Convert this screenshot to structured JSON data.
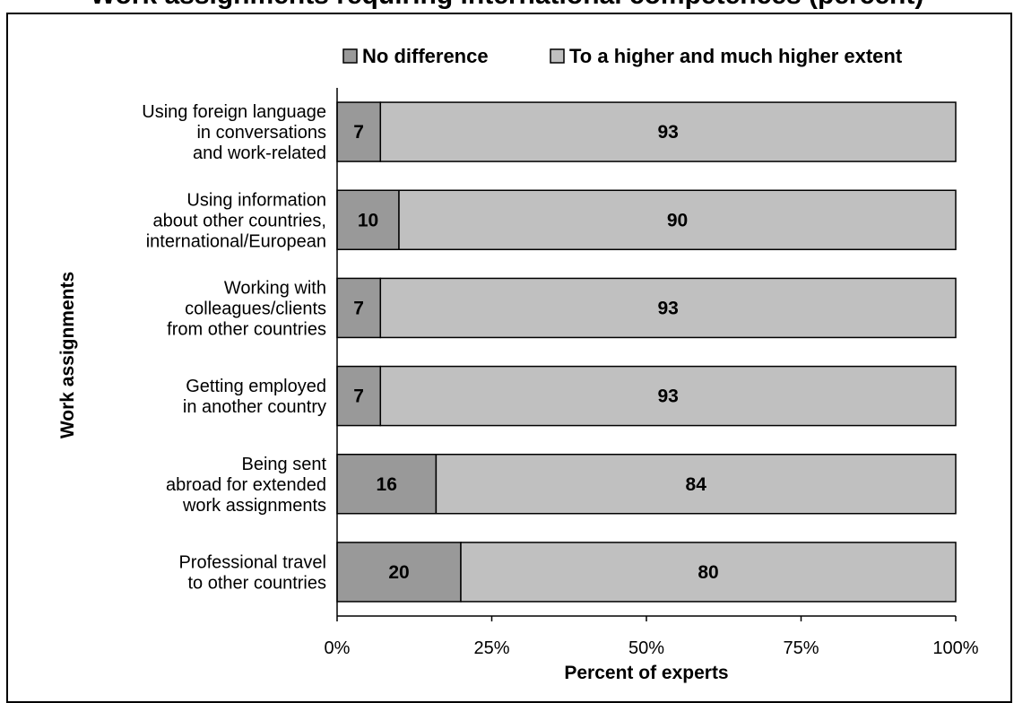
{
  "chart_data": {
    "type": "bar",
    "stacked": true,
    "orientation": "horizontal",
    "title": "Work assignments requiring international competences (percent)",
    "xlabel": "Percent of experts",
    "ylabel": "Work assignments",
    "xlim": [
      0,
      100
    ],
    "x_ticks": [
      "0%",
      "25%",
      "50%",
      "75%",
      "100%"
    ],
    "legend_position": "top",
    "grid": false,
    "categories": [
      [
        "Using foreign language",
        "in conversations",
        "and work-related"
      ],
      [
        "Using information",
        "about other countries,",
        "international/European"
      ],
      [
        "Working with",
        "colleagues/clients",
        "from other countries"
      ],
      [
        "Getting employed",
        "in another country"
      ],
      [
        "Being sent",
        "abroad for extended",
        "work assignments"
      ],
      [
        "Professional travel",
        "to other countries"
      ]
    ],
    "series": [
      {
        "name": "No difference",
        "color": "#999999",
        "values": [
          7,
          10,
          7,
          7,
          16,
          20
        ]
      },
      {
        "name": "To a higher and much higher extent",
        "color": "#c0c0c0",
        "values": [
          93,
          90,
          93,
          93,
          84,
          80
        ]
      }
    ]
  }
}
